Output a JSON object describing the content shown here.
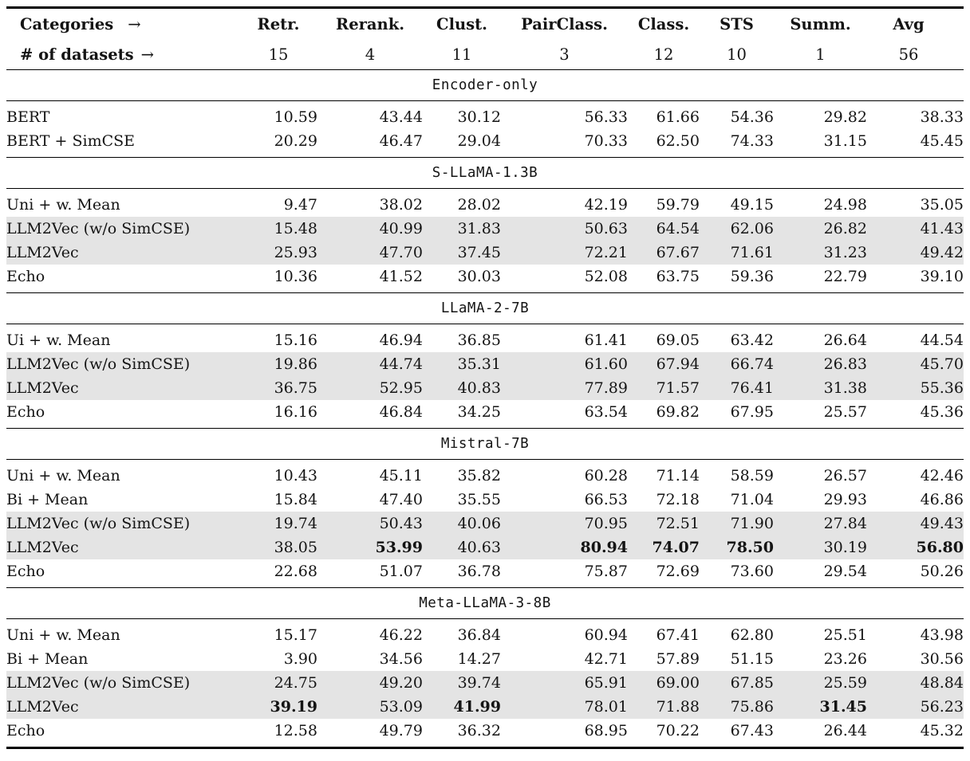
{
  "table": {
    "header": {
      "categories_label": "Categories",
      "datasets_label": "# of datasets",
      "arrow": "→",
      "columns": [
        {
          "label": "Retr.",
          "count": "15"
        },
        {
          "label": "Rerank.",
          "count": "4"
        },
        {
          "label": "Clust.",
          "count": "11"
        },
        {
          "label": "PairClass.",
          "count": "3"
        },
        {
          "label": "Class.",
          "count": "12"
        },
        {
          "label": "STS",
          "count": "10"
        },
        {
          "label": "Summ.",
          "count": "1"
        },
        {
          "label": "Avg",
          "count": "56"
        }
      ]
    },
    "sections": [
      {
        "title": "Encoder-only",
        "rows": [
          {
            "name": "BERT",
            "shaded": false,
            "bold": [],
            "values": [
              "10.59",
              "43.44",
              "30.12",
              "56.33",
              "61.66",
              "54.36",
              "29.82",
              "38.33"
            ]
          },
          {
            "name": "BERT + SimCSE",
            "shaded": false,
            "bold": [],
            "values": [
              "20.29",
              "46.47",
              "29.04",
              "70.33",
              "62.50",
              "74.33",
              "31.15",
              "45.45"
            ]
          }
        ]
      },
      {
        "title": "S-LLaMA-1.3B",
        "rows": [
          {
            "name": "Uni + w. Mean",
            "shaded": false,
            "bold": [],
            "values": [
              "9.47",
              "38.02",
              "28.02",
              "42.19",
              "59.79",
              "49.15",
              "24.98",
              "35.05"
            ]
          },
          {
            "name": "LLM2Vec (w/o SimCSE)",
            "shaded": true,
            "bold": [],
            "values": [
              "15.48",
              "40.99",
              "31.83",
              "50.63",
              "64.54",
              "62.06",
              "26.82",
              "41.43"
            ]
          },
          {
            "name": "LLM2Vec",
            "shaded": true,
            "bold": [],
            "values": [
              "25.93",
              "47.70",
              "37.45",
              "72.21",
              "67.67",
              "71.61",
              "31.23",
              "49.42"
            ]
          },
          {
            "name": "Echo",
            "shaded": false,
            "bold": [],
            "values": [
              "10.36",
              "41.52",
              "30.03",
              "52.08",
              "63.75",
              "59.36",
              "22.79",
              "39.10"
            ]
          }
        ]
      },
      {
        "title": "LLaMA-2-7B",
        "rows": [
          {
            "name": "Ui + w. Mean",
            "shaded": false,
            "bold": [],
            "values": [
              "15.16",
              "46.94",
              "36.85",
              "61.41",
              "69.05",
              "63.42",
              "26.64",
              "44.54"
            ]
          },
          {
            "name": "LLM2Vec (w/o SimCSE)",
            "shaded": true,
            "bold": [],
            "values": [
              "19.86",
              "44.74",
              "35.31",
              "61.60",
              "67.94",
              "66.74",
              "26.83",
              "45.70"
            ]
          },
          {
            "name": "LLM2Vec",
            "shaded": true,
            "bold": [],
            "values": [
              "36.75",
              "52.95",
              "40.83",
              "77.89",
              "71.57",
              "76.41",
              "31.38",
              "55.36"
            ]
          },
          {
            "name": "Echo",
            "shaded": false,
            "bold": [],
            "values": [
              "16.16",
              "46.84",
              "34.25",
              "63.54",
              "69.82",
              "67.95",
              "25.57",
              "45.36"
            ]
          }
        ]
      },
      {
        "title": "Mistral-7B",
        "rows": [
          {
            "name": "Uni + w. Mean",
            "shaded": false,
            "bold": [],
            "values": [
              "10.43",
              "45.11",
              "35.82",
              "60.28",
              "71.14",
              "58.59",
              "26.57",
              "42.46"
            ]
          },
          {
            "name": "Bi + Mean",
            "shaded": false,
            "bold": [],
            "values": [
              "15.84",
              "47.40",
              "35.55",
              "66.53",
              "72.18",
              "71.04",
              "29.93",
              "46.86"
            ]
          },
          {
            "name": "LLM2Vec (w/o SimCSE)",
            "shaded": true,
            "bold": [],
            "values": [
              "19.74",
              "50.43",
              "40.06",
              "70.95",
              "72.51",
              "71.90",
              "27.84",
              "49.43"
            ]
          },
          {
            "name": "LLM2Vec",
            "shaded": true,
            "bold": [
              1,
              3,
              4,
              5,
              7
            ],
            "values": [
              "38.05",
              "53.99",
              "40.63",
              "80.94",
              "74.07",
              "78.50",
              "30.19",
              "56.80"
            ]
          },
          {
            "name": "Echo",
            "shaded": false,
            "bold": [],
            "values": [
              "22.68",
              "51.07",
              "36.78",
              "75.87",
              "72.69",
              "73.60",
              "29.54",
              "50.26"
            ]
          }
        ]
      },
      {
        "title": "Meta-LLaMA-3-8B",
        "rows": [
          {
            "name": "Uni + w. Mean",
            "shaded": false,
            "bold": [],
            "values": [
              "15.17",
              "46.22",
              "36.84",
              "60.94",
              "67.41",
              "62.80",
              "25.51",
              "43.98"
            ]
          },
          {
            "name": "Bi + Mean",
            "shaded": false,
            "bold": [],
            "values": [
              "3.90",
              "34.56",
              "14.27",
              "42.71",
              "57.89",
              "51.15",
              "23.26",
              "30.56"
            ]
          },
          {
            "name": "LLM2Vec (w/o SimCSE)",
            "shaded": true,
            "bold": [],
            "values": [
              "24.75",
              "49.20",
              "39.74",
              "65.91",
              "69.00",
              "67.85",
              "25.59",
              "48.84"
            ]
          },
          {
            "name": "LLM2Vec",
            "shaded": true,
            "bold": [
              0,
              2,
              6
            ],
            "values": [
              "39.19",
              "53.09",
              "41.99",
              "78.01",
              "71.88",
              "75.86",
              "31.45",
              "56.23"
            ]
          },
          {
            "name": "Echo",
            "shaded": false,
            "bold": [],
            "values": [
              "12.58",
              "49.79",
              "36.32",
              "68.95",
              "70.22",
              "67.43",
              "26.44",
              "45.32"
            ]
          }
        ]
      }
    ]
  },
  "colors": {
    "row_shade": "#e4e4e4",
    "rule": "#000000",
    "text": "#141414"
  }
}
